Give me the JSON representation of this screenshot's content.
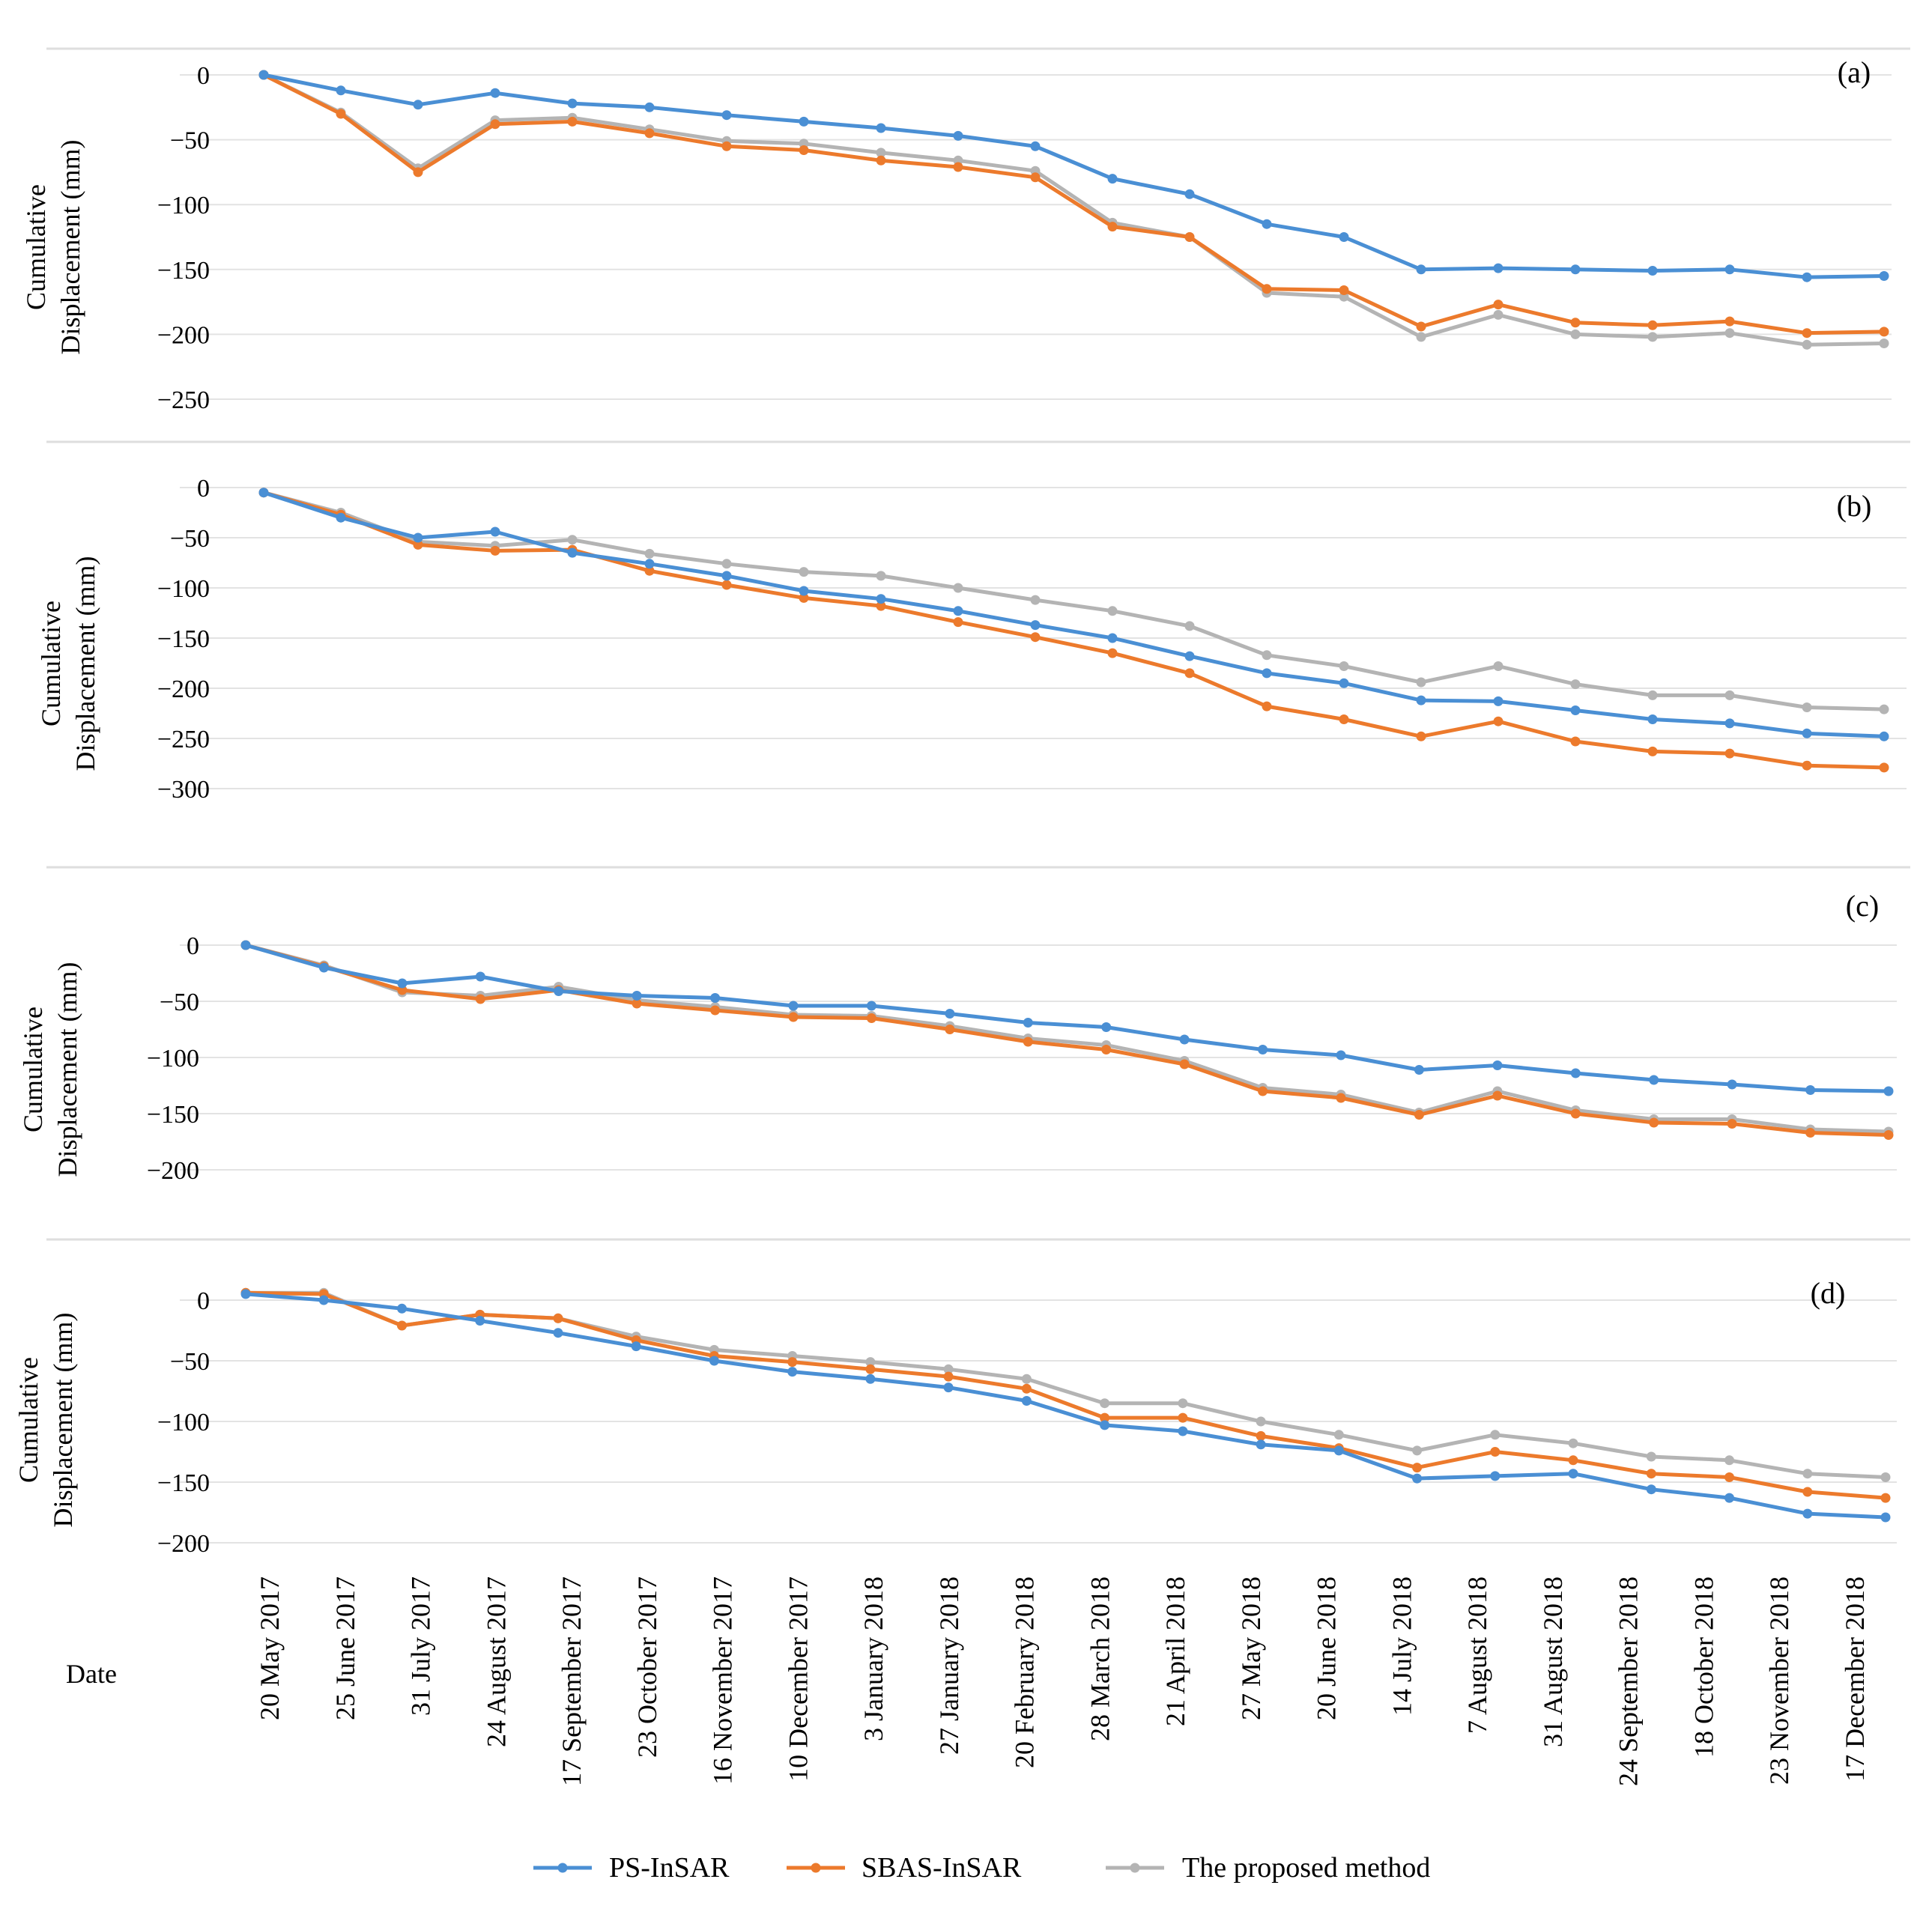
{
  "figure": {
    "xlabel": "Date",
    "dates": [
      "20 May 2017",
      "25 June 2017",
      "31 July 2017",
      "24 August 2017",
      "17 September 2017",
      "23 October 2017",
      "16 November 2017",
      "10 December 2017",
      "3 January 2018",
      "27 January 2018",
      "20 February 2018",
      "28 March 2018",
      "21 April 2018",
      "27 May 2018",
      "20 June 2018",
      "14 July 2018",
      "7 August 2018",
      "31 August 2018",
      "24 September 2018",
      "18 October 2018",
      "23 November 2018",
      "17 December 2018"
    ],
    "legend": [
      "PS-InSAR",
      "SBAS-InSAR",
      "The proposed method"
    ],
    "colors": {
      "ps": "#4a8fd4",
      "sbas": "#ec7a2c",
      "proposed": "#b4b4b4",
      "grid": "#e3e3e3"
    }
  },
  "chart_data": [
    {
      "type": "line",
      "panel": "(a)",
      "ylabel_line1": "Cumulative",
      "ylabel_line2": "Displacement (mm)",
      "yticks": [
        "0",
        "−50",
        "−100",
        "−150",
        "−200",
        "−250"
      ],
      "ylim": [
        -250,
        0
      ],
      "series": [
        {
          "name": "PS-InSAR",
          "values": [
            0,
            -12,
            -23,
            -14,
            -22,
            -25,
            -31,
            -36,
            -41,
            -47,
            -55,
            -80,
            -92,
            -115,
            -125,
            -150,
            -149,
            -150,
            -151,
            -150,
            -156,
            -155
          ]
        },
        {
          "name": "SBAS-InSAR",
          "values": [
            0,
            -30,
            -75,
            -38,
            -36,
            -45,
            -55,
            -58,
            -66,
            -71,
            -79,
            -117,
            -125,
            -165,
            -166,
            -194,
            -177,
            -191,
            -193,
            -190,
            -199,
            -198
          ]
        },
        {
          "name": "The proposed method",
          "values": [
            0,
            -29,
            -72,
            -35,
            -33,
            -42,
            -51,
            -53,
            -60,
            -66,
            -74,
            -114,
            -125,
            -168,
            -171,
            -202,
            -185,
            -200,
            -202,
            -199,
            -208,
            -207
          ]
        }
      ]
    },
    {
      "type": "line",
      "panel": "(b)",
      "ylabel_line1": "Cumulative",
      "ylabel_line2": "Displacement (mm)",
      "yticks": [
        "0",
        "−50",
        "−100",
        "−150",
        "−200",
        "−250",
        "−300"
      ],
      "ylim": [
        -300,
        0
      ],
      "series": [
        {
          "name": "PS-InSAR",
          "values": [
            -5,
            -30,
            -50,
            -44,
            -65,
            -76,
            -88,
            -103,
            -111,
            -123,
            -137,
            -150,
            -168,
            -185,
            -195,
            -212,
            -213,
            -222,
            -231,
            -235,
            -245,
            -248
          ]
        },
        {
          "name": "SBAS-InSAR",
          "values": [
            -5,
            -27,
            -57,
            -63,
            -62,
            -83,
            -97,
            -110,
            -118,
            -134,
            -149,
            -165,
            -185,
            -218,
            -231,
            -248,
            -233,
            -253,
            -263,
            -265,
            -277,
            -279
          ]
        },
        {
          "name": "The proposed method",
          "values": [
            -5,
            -25,
            -54,
            -58,
            -52,
            -66,
            -76,
            -84,
            -88,
            -100,
            -112,
            -123,
            -138,
            -167,
            -178,
            -194,
            -178,
            -196,
            -207,
            -207,
            -219,
            -221
          ]
        }
      ]
    },
    {
      "type": "line",
      "panel": "(c)",
      "ylabel_line1": "Cumulative",
      "ylabel_line2": "Displacement (mm)",
      "yticks": [
        "0",
        "−50",
        "−100",
        "−150",
        "−200"
      ],
      "ylim": [
        -200,
        0
      ],
      "series": [
        {
          "name": "PS-InSAR",
          "values": [
            0,
            -20,
            -34,
            -28,
            -41,
            -45,
            -47,
            -54,
            -54,
            -61,
            -69,
            -73,
            -84,
            -93,
            -98,
            -111,
            -107,
            -114,
            -120,
            -124,
            -129,
            -130
          ]
        },
        {
          "name": "SBAS-InSAR",
          "values": [
            0,
            -19,
            -40,
            -48,
            -40,
            -52,
            -58,
            -64,
            -65,
            -75,
            -86,
            -93,
            -106,
            -130,
            -136,
            -151,
            -134,
            -150,
            -158,
            -159,
            -167,
            -169
          ]
        },
        {
          "name": "The proposed method",
          "values": [
            0,
            -18,
            -42,
            -45,
            -37,
            -49,
            -55,
            -62,
            -63,
            -72,
            -83,
            -89,
            -103,
            -127,
            -133,
            -149,
            -130,
            -147,
            -155,
            -155,
            -164,
            -166
          ]
        }
      ]
    },
    {
      "type": "line",
      "panel": "(d)",
      "ylabel_line1": "Cumulative",
      "ylabel_line2": "Displacement (mm)",
      "yticks": [
        "0",
        "−50",
        "−100",
        "−150",
        "−200"
      ],
      "ylim": [
        -200,
        0
      ],
      "series": [
        {
          "name": "PS-InSAR",
          "values": [
            5,
            0,
            -7,
            -17,
            -27,
            -38,
            -50,
            -59,
            -65,
            -72,
            -83,
            -103,
            -108,
            -119,
            -124,
            -147,
            -145,
            -143,
            -156,
            -163,
            -176,
            -179
          ]
        },
        {
          "name": "SBAS-InSAR",
          "values": [
            6,
            5,
            -21,
            -12,
            -15,
            -33,
            -46,
            -51,
            -57,
            -63,
            -73,
            -97,
            -97,
            -112,
            -122,
            -138,
            -125,
            -132,
            -143,
            -146,
            -158,
            -163
          ]
        },
        {
          "name": "The proposed method",
          "values": [
            6,
            6,
            -21,
            -12,
            -15,
            -30,
            -41,
            -46,
            -51,
            -57,
            -65,
            -85,
            -85,
            -100,
            -111,
            -124,
            -111,
            -118,
            -129,
            -132,
            -143,
            -146
          ]
        }
      ]
    }
  ]
}
